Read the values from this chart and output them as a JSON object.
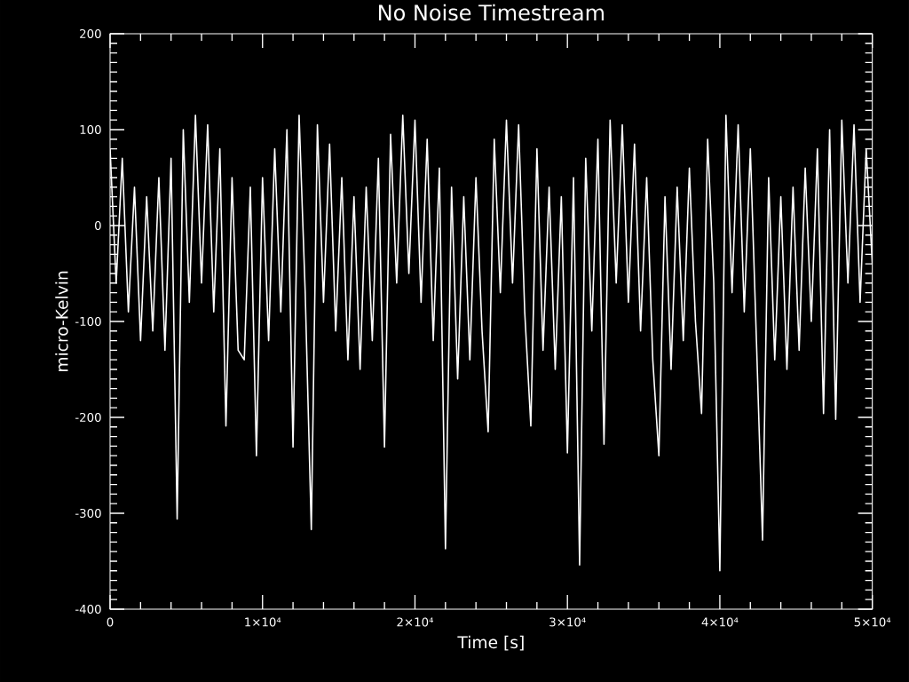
{
  "chart_data": {
    "type": "line",
    "title": "No Noise Timestream",
    "xlabel": "Time [s]",
    "ylabel": "micro-Kelvin",
    "xlim": [
      0,
      50000
    ],
    "ylim": [
      -400,
      200
    ],
    "xticks": [
      0,
      {
        "value": 10000,
        "label": "1×10⁴"
      },
      {
        "value": 20000,
        "label": "2×10⁴"
      },
      {
        "value": 30000,
        "label": "3×10⁴"
      },
      {
        "value": 40000,
        "label": "4×10⁴"
      },
      {
        "value": 50000,
        "label": "5×10⁴"
      }
    ],
    "yticks": [
      -400,
      -300,
      -200,
      -100,
      0,
      100,
      200
    ],
    "tick_labels": "xy",
    "line_style": "solid",
    "x": [
      0,
      400,
      800,
      1200,
      1600,
      2000,
      2400,
      2800,
      3200,
      3600,
      4000,
      4400,
      4800,
      5200,
      5600,
      6000,
      6400,
      6800,
      7200,
      7600,
      8000,
      8400,
      8800,
      9200,
      9600,
      10000,
      10400,
      10800,
      11200,
      11600,
      12000,
      12400,
      12800,
      13200,
      13600,
      14000,
      14400,
      14800,
      15200,
      15600,
      16000,
      16400,
      16800,
      17200,
      17600,
      18000,
      18400,
      18800,
      19200,
      19600,
      20000,
      20400,
      20800,
      21200,
      21600,
      22000,
      22400,
      22800,
      23200,
      23600,
      24000,
      24400,
      24800,
      25200,
      25600,
      26000,
      26400,
      26800,
      27200,
      27600,
      28000,
      28400,
      28800,
      29200,
      29600,
      30000,
      30400,
      30800,
      31200,
      31600,
      32000,
      32400,
      32800,
      33200,
      33600,
      34000,
      34400,
      34800,
      35200,
      35600,
      36000,
      36400,
      36800,
      37200,
      37600,
      38000,
      38400,
      38800,
      39200,
      39600,
      40000,
      40400,
      40800,
      41200,
      41600,
      42000,
      42400,
      42800,
      43200,
      43600,
      44000,
      44400,
      44800,
      45200,
      45600,
      46000,
      46400,
      46800,
      47200,
      47600,
      48000,
      48400,
      48800,
      49200,
      49600,
      50000
    ],
    "series": [
      {
        "color": "#ffffff",
        "values": [
          80,
          -60,
          70,
          -90,
          40,
          -120,
          30,
          -110,
          50,
          -130,
          70,
          -306,
          100,
          -80,
          115,
          -60,
          105,
          -90,
          80,
          -209,
          50,
          -130,
          -140,
          40,
          -240,
          50,
          -120,
          80,
          -90,
          100,
          -231,
          115,
          -70,
          -317,
          105,
          -80,
          85,
          -110,
          50,
          -140,
          30,
          -150,
          40,
          -120,
          70,
          -231,
          95,
          -60,
          115,
          -50,
          110,
          -80,
          90,
          -120,
          60,
          -337,
          40,
          -160,
          30,
          -140,
          50,
          -110,
          -215,
          90,
          -70,
          110,
          -60,
          105,
          -90,
          -209,
          80,
          -130,
          40,
          -150,
          30,
          -237,
          50,
          -354,
          70,
          -110,
          90,
          -228,
          110,
          -60,
          105,
          -80,
          85,
          -110,
          50,
          -140,
          -240,
          30,
          -150,
          40,
          -120,
          60,
          -100,
          -196,
          90,
          -60,
          -360,
          115,
          -70,
          105,
          -90,
          80,
          -120,
          -328,
          50,
          -140,
          30,
          -150,
          40,
          -130,
          60,
          -100,
          80,
          -196,
          100,
          -202,
          110,
          -60,
          105,
          -80,
          80,
          -40
        ]
      }
    ]
  }
}
